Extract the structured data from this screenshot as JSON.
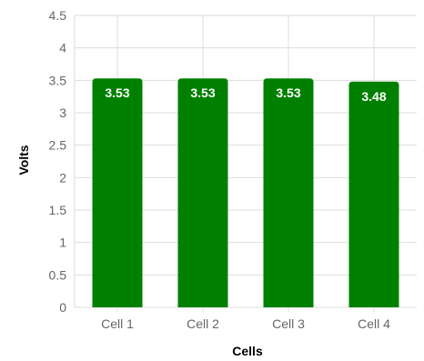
{
  "chart_data": {
    "type": "bar",
    "categories": [
      "Cell 1",
      "Cell 2",
      "Cell 3",
      "Cell 4"
    ],
    "values": [
      3.53,
      3.53,
      3.53,
      3.48
    ],
    "data_labels": [
      "3.53",
      "3.53",
      "3.53",
      "3.48"
    ],
    "xlabel": "Cells",
    "ylabel": "Volts",
    "ylim": [
      0,
      4.5
    ],
    "yticks": [
      "0",
      "0.5",
      "1",
      "1.5",
      "2",
      "2.5",
      "3",
      "3.5",
      "4",
      "4.5"
    ],
    "grid": true,
    "bar_color": "#008000"
  }
}
